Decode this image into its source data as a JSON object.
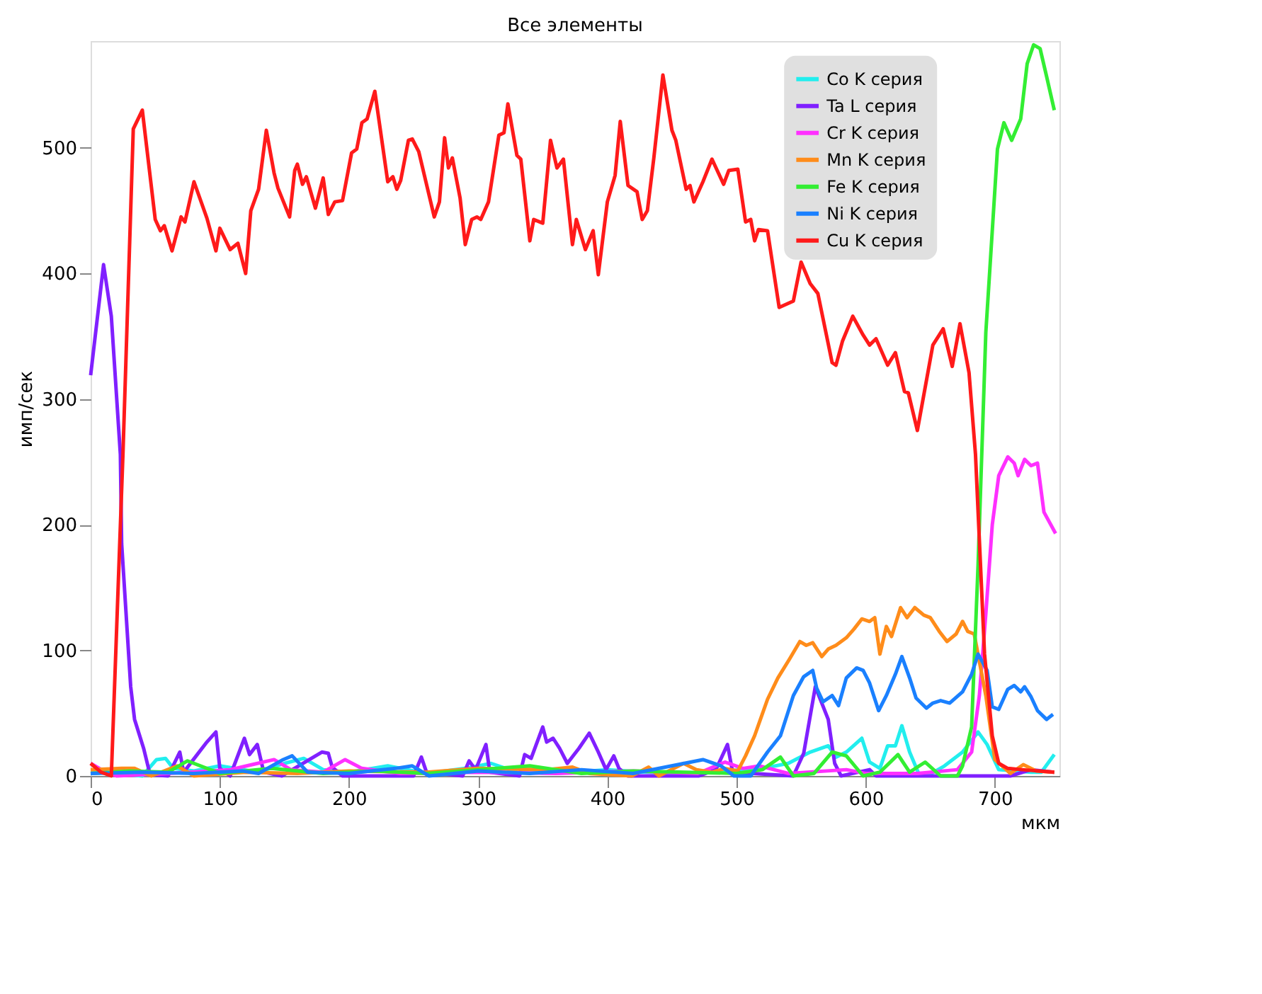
{
  "chart_data": {
    "type": "line",
    "title": "Все элементы",
    "xlabel": "мкм",
    "ylabel": "имп/сек",
    "xlim": [
      0,
      750
    ],
    "ylim": [
      0,
      585
    ],
    "xticks": [
      0,
      100,
      200,
      300,
      400,
      500,
      600,
      700
    ],
    "yticks": [
      0,
      100,
      200,
      300,
      400,
      500
    ],
    "grid": false,
    "legend": "top right",
    "marker": "none",
    "line_style": "solid",
    "series": [
      {
        "name": "Co K серия",
        "color": "#22eeee",
        "x": [
          0,
          20,
          40,
          51,
          58,
          64,
          80,
          100,
          130,
          150,
          165,
          180,
          200,
          230,
          260,
          290,
          310,
          330,
          360,
          400,
          430,
          460,
          490,
          520,
          540,
          557,
          571,
          577,
          585,
          597,
          603,
          611,
          617,
          623,
          628,
          634,
          641,
          651,
          661,
          675,
          687,
          694,
          703,
          728,
          736,
          746
        ],
        "values": [
          3,
          2,
          0,
          13,
          14,
          6,
          4,
          8,
          3,
          10,
          14,
          5,
          3,
          8,
          2,
          6,
          10,
          3,
          2,
          5,
          3,
          2,
          4,
          6,
          10,
          19,
          24,
          15,
          19,
          30,
          11,
          6,
          24,
          24,
          40,
          19,
          2,
          2,
          8,
          19,
          35,
          25,
          5,
          3,
          3,
          17
        ]
      },
      {
        "name": "Ta L серия",
        "color": "#8020ff",
        "x": [
          0,
          10,
          16,
          23,
          24,
          31,
          34,
          41,
          46,
          60,
          69,
          72,
          81,
          90,
          97,
          100,
          108,
          119,
          123,
          129,
          134,
          148,
          179,
          184,
          187,
          195,
          250,
          256,
          260,
          288,
          293,
          298,
          306,
          309,
          332,
          336,
          341,
          350,
          353,
          358,
          363,
          369,
          378,
          386,
          393,
          399,
          405,
          409,
          416,
          471,
          484,
          493,
          497,
          544,
          552,
          561,
          571,
          576,
          581,
          603,
          608,
          712,
          728,
          746
        ],
        "values": [
          319,
          407,
          366,
          256,
          185,
          71,
          45,
          22,
          1,
          0,
          19,
          3,
          15,
          27,
          35,
          6,
          0,
          30,
          17,
          25,
          3,
          0,
          19,
          18,
          7,
          0,
          0,
          15,
          3,
          0,
          12,
          5,
          25,
          3,
          0,
          17,
          14,
          39,
          27,
          30,
          22,
          10,
          22,
          34,
          19,
          5,
          16,
          6,
          0,
          0,
          5,
          25,
          3,
          0,
          18,
          71,
          45,
          10,
          0,
          5,
          0,
          0,
          5,
          3
        ]
      },
      {
        "name": "Cr K серия",
        "color": "#ff30ff",
        "x": [
          0,
          10,
          20,
          60,
          108,
          125,
          142,
          155,
          180,
          197,
          210,
          240,
          300,
          360,
          420,
          470,
          491,
          505,
          518,
          540,
          585,
          600,
          640,
          671,
          682,
          688,
          693,
          698,
          703,
          710,
          715,
          718,
          723,
          728,
          733,
          738,
          747
        ],
        "values": [
          10,
          4,
          0,
          2,
          5,
          9,
          13,
          5,
          3,
          13,
          6,
          2,
          3,
          2,
          4,
          2,
          11,
          6,
          8,
          2,
          5,
          2,
          2,
          5,
          19,
          64,
          129,
          200,
          239,
          254,
          249,
          239,
          252,
          247,
          249,
          210,
          193
        ]
      },
      {
        "name": "Mn K серия",
        "color": "#ff8c1a",
        "x": [
          0,
          24,
          34,
          47,
          67,
          80,
          120,
          160,
          200,
          260,
          300,
          353,
          373,
          386,
          419,
          432,
          440,
          459,
          469,
          481,
          491,
          501,
          507,
          514,
          524,
          532,
          541,
          549,
          554,
          559,
          566,
          571,
          577,
          585,
          591,
          597,
          603,
          607,
          611,
          616,
          620,
          627,
          632,
          638,
          645,
          650,
          657,
          663,
          670,
          675,
          679,
          684,
          693,
          700,
          712,
          722,
          732,
          746
        ],
        "values": [
          5,
          6,
          6,
          0,
          8,
          0,
          3,
          2,
          4,
          3,
          6,
          5,
          7,
          2,
          0,
          7,
          0,
          10,
          5,
          3,
          6,
          4,
          16,
          32,
          61,
          78,
          93,
          107,
          104,
          106,
          95,
          101,
          104,
          110,
          117,
          125,
          123,
          126,
          97,
          119,
          111,
          134,
          126,
          134,
          128,
          126,
          115,
          107,
          113,
          123,
          115,
          113,
          64,
          13,
          2,
          9,
          4,
          3
        ]
      },
      {
        "name": "Fe K серия",
        "color": "#33ee33",
        "x": [
          0,
          30,
          60,
          75,
          100,
          140,
          180,
          220,
          260,
          300,
          340,
          380,
          420,
          460,
          500,
          520,
          534,
          544,
          560,
          574,
          585,
          598,
          611,
          625,
          634,
          646,
          658,
          671,
          675,
          682,
          687,
          693,
          702,
          707,
          713,
          720,
          725,
          730,
          735,
          740,
          746
        ],
        "values": [
          2,
          4,
          3,
          12,
          2,
          6,
          2,
          4,
          2,
          5,
          8,
          2,
          4,
          3,
          2,
          5,
          15,
          0,
          2,
          19,
          16,
          0,
          3,
          17,
          3,
          11,
          0,
          0,
          8,
          39,
          168,
          353,
          499,
          520,
          506,
          523,
          567,
          582,
          579,
          557,
          530
        ]
      },
      {
        "name": "Ni K серия",
        "color": "#1a80ff",
        "x": [
          0,
          40,
          80,
          117,
          130,
          149,
          156,
          168,
          200,
          236,
          249,
          262,
          300,
          340,
          380,
          420,
          474,
          488,
          498,
          511,
          524,
          534,
          544,
          552,
          559,
          562,
          567,
          574,
          579,
          585,
          593,
          598,
          603,
          610,
          616,
          623,
          628,
          634,
          639,
          647,
          652,
          658,
          665,
          675,
          682,
          687,
          694,
          698,
          703,
          710,
          715,
          720,
          723,
          728,
          733,
          740,
          745
        ],
        "values": [
          2,
          3,
          2,
          4,
          2,
          13,
          16,
          3,
          2,
          6,
          8,
          0,
          4,
          2,
          5,
          2,
          13,
          8,
          0,
          0,
          19,
          32,
          64,
          79,
          84,
          70,
          59,
          64,
          56,
          78,
          86,
          84,
          74,
          52,
          64,
          81,
          95,
          78,
          62,
          54,
          58,
          60,
          58,
          67,
          81,
          97,
          84,
          55,
          53,
          69,
          72,
          67,
          71,
          63,
          52,
          45,
          49
        ]
      },
      {
        "name": "Cu K серия",
        "color": "#ff1a1a",
        "x": [
          0,
          8,
          16,
          25,
          33,
          40,
          50,
          54,
          57,
          63,
          70,
          73,
          80,
          90,
          97,
          100,
          108,
          114,
          120,
          124,
          130,
          136,
          142,
          145,
          154,
          158,
          160,
          164,
          167,
          174,
          180,
          184,
          189,
          195,
          202,
          206,
          210,
          214,
          220,
          230,
          234,
          237,
          240,
          246,
          249,
          254,
          266,
          270,
          274,
          277,
          280,
          286,
          290,
          295,
          299,
          302,
          308,
          316,
          320,
          323,
          330,
          333,
          340,
          343,
          350,
          356,
          361,
          366,
          373,
          376,
          383,
          389,
          393,
          400,
          406,
          410,
          416,
          423,
          427,
          431,
          436,
          443,
          450,
          453,
          461,
          464,
          467,
          474,
          481,
          490,
          494,
          501,
          507,
          511,
          514,
          517,
          524,
          533,
          544,
          550,
          557,
          563,
          574,
          577,
          582,
          590,
          598,
          603,
          608,
          617,
          623,
          630,
          633,
          640,
          652,
          660,
          667,
          673,
          680,
          685,
          692,
          698,
          703,
          710,
          721,
          746
        ],
        "values": [
          10,
          3,
          0,
          256,
          515,
          530,
          443,
          434,
          438,
          418,
          445,
          441,
          473,
          444,
          418,
          436,
          419,
          424,
          400,
          450,
          467,
          514,
          480,
          468,
          445,
          482,
          487,
          471,
          477,
          452,
          476,
          447,
          457,
          458,
          496,
          499,
          520,
          523,
          545,
          473,
          477,
          467,
          474,
          506,
          507,
          497,
          445,
          457,
          508,
          484,
          492,
          460,
          423,
          443,
          445,
          443,
          457,
          510,
          512,
          535,
          494,
          491,
          426,
          443,
          440,
          506,
          484,
          491,
          423,
          443,
          419,
          434,
          399,
          457,
          478,
          521,
          470,
          465,
          443,
          450,
          492,
          558,
          514,
          506,
          467,
          470,
          457,
          473,
          491,
          471,
          482,
          483,
          441,
          443,
          426,
          435,
          434,
          373,
          378,
          409,
          392,
          384,
          329,
          327,
          346,
          366,
          351,
          343,
          348,
          327,
          337,
          306,
          305,
          275,
          343,
          356,
          326,
          360,
          321,
          256,
          97,
          32,
          10,
          6,
          5,
          3
        ]
      }
    ]
  }
}
